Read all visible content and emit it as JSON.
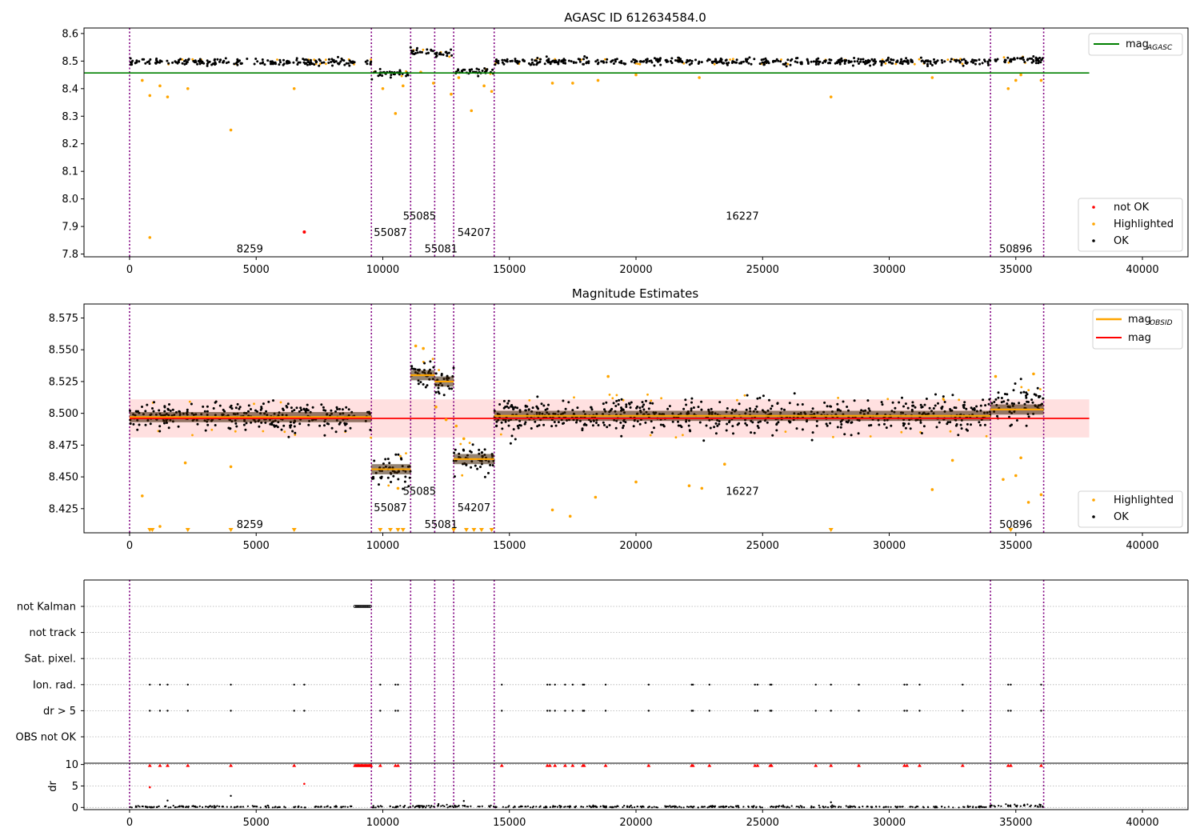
{
  "chart_data": [
    {
      "type": "scatter",
      "id": "agasc",
      "title": "AGASC ID 612634584.0",
      "xlabel": "",
      "ylabel": "",
      "xlim": [
        -1800,
        41800
      ],
      "ylim": [
        7.79,
        8.62
      ],
      "xticks": [
        0,
        5000,
        10000,
        15000,
        20000,
        25000,
        30000,
        35000,
        40000
      ],
      "xtick_labels": [
        "0",
        "5000",
        "10000",
        "15000",
        "20000",
        "25000",
        "30000",
        "35000",
        "40000"
      ],
      "yticks": [
        7.8,
        7.9,
        8.0,
        8.1,
        8.2,
        8.3,
        8.4,
        8.5,
        8.6
      ],
      "ytick_labels": [
        "7.8",
        "7.9",
        "8.0",
        "8.1",
        "8.2",
        "8.3",
        "8.4",
        "8.5",
        "8.6"
      ],
      "reference_line": {
        "name": "mag_AGASC",
        "value": 8.457,
        "x_range": [
          -1800,
          37900
        ],
        "color": "#008000"
      },
      "segments": [
        {
          "x_range": [
            0,
            8900
          ],
          "y": 8.497,
          "spread": 0.012
        },
        {
          "x_range": [
            9300,
            9550
          ],
          "y": 8.497,
          "spread": 0.012
        },
        {
          "x_range": [
            9550,
            11100
          ],
          "y": 8.455,
          "spread": 0.012
        },
        {
          "x_range": [
            11100,
            12050
          ],
          "y": 8.533,
          "spread": 0.012
        },
        {
          "x_range": [
            12050,
            12800
          ],
          "y": 8.525,
          "spread": 0.012
        },
        {
          "x_range": [
            12800,
            14400
          ],
          "y": 8.463,
          "spread": 0.012
        },
        {
          "x_range": [
            14400,
            34000
          ],
          "y": 8.498,
          "spread": 0.012
        },
        {
          "x_range": [
            34000,
            36100
          ],
          "y": 8.505,
          "spread": 0.014
        }
      ],
      "highlighted_points": [
        [
          800,
          8.375
        ],
        [
          1200,
          8.41
        ],
        [
          1500,
          8.37
        ],
        [
          500,
          8.43
        ],
        [
          2300,
          8.4
        ],
        [
          4000,
          8.25
        ],
        [
          6500,
          8.4
        ],
        [
          800,
          7.86
        ],
        [
          10000,
          8.4
        ],
        [
          10500,
          8.31
        ],
        [
          10800,
          8.41
        ],
        [
          11500,
          8.46
        ],
        [
          12000,
          8.42
        ],
        [
          12700,
          8.38
        ],
        [
          13000,
          8.44
        ],
        [
          13500,
          8.32
        ],
        [
          14000,
          8.41
        ],
        [
          14300,
          8.39
        ],
        [
          16700,
          8.42
        ],
        [
          17500,
          8.42
        ],
        [
          18500,
          8.43
        ],
        [
          20000,
          8.45
        ],
        [
          22500,
          8.44
        ],
        [
          27700,
          8.37
        ],
        [
          31700,
          8.44
        ],
        [
          34700,
          8.4
        ],
        [
          35000,
          8.43
        ],
        [
          35200,
          8.45
        ],
        [
          36000,
          8.43
        ]
      ],
      "not_ok_points": [
        [
          6900,
          7.88
        ]
      ],
      "obsid_boundaries": [
        0,
        9550,
        11100,
        12050,
        12800,
        14400,
        34000,
        36100
      ],
      "obsid_labels": [
        {
          "text": "8259",
          "x": 4750,
          "y": 7.82
        },
        {
          "text": "55087",
          "x": 10300,
          "y": 7.88
        },
        {
          "text": "55085",
          "x": 11450,
          "y": 7.94
        },
        {
          "text": "55081",
          "x": 12300,
          "y": 7.82
        },
        {
          "text": "54207",
          "x": 13600,
          "y": 7.88
        },
        {
          "text": "16227",
          "x": 24200,
          "y": 7.94
        },
        {
          "text": "50896",
          "x": 35000,
          "y": 7.82
        }
      ],
      "legend_upper": {
        "position": "top-right",
        "entries": [
          {
            "label": "mag",
            "sub": "AGASC",
            "color": "#008000",
            "kind": "line"
          }
        ]
      },
      "legend_lower": {
        "position": "bottom-right",
        "entries": [
          {
            "label": "not OK",
            "color": "#ff0000",
            "kind": "dot"
          },
          {
            "label": "Highlighted",
            "color": "#ffa500",
            "kind": "dot"
          },
          {
            "label": "OK",
            "color": "#000000",
            "kind": "dot"
          }
        ]
      }
    },
    {
      "type": "scatter",
      "id": "estimates",
      "title": "Magnitude Estimates",
      "xlabel": "",
      "ylabel": "",
      "xlim": [
        -1800,
        41800
      ],
      "ylim": [
        8.406,
        8.586
      ],
      "xticks": [
        0,
        5000,
        10000,
        15000,
        20000,
        25000,
        30000,
        35000,
        40000
      ],
      "xtick_labels": [
        "0",
        "5000",
        "10000",
        "15000",
        "20000",
        "25000",
        "30000",
        "35000",
        "40000"
      ],
      "yticks": [
        8.425,
        8.45,
        8.475,
        8.5,
        8.525,
        8.55,
        8.575
      ],
      "ytick_labels": [
        "8.425",
        "8.450",
        "8.475",
        "8.500",
        "8.525",
        "8.550",
        "8.575"
      ],
      "mean_mag": 8.496,
      "mean_band": [
        8.481,
        8.511
      ],
      "mean_range": [
        0,
        37900
      ],
      "obsid_mags": [
        {
          "x_range": [
            0,
            9550
          ],
          "mag": 8.497
        },
        {
          "x_range": [
            9550,
            11100
          ],
          "mag": 8.456
        },
        {
          "x_range": [
            11100,
            12050
          ],
          "mag": 8.53
        },
        {
          "x_range": [
            12050,
            12800
          ],
          "mag": 8.525
        },
        {
          "x_range": [
            12800,
            14400
          ],
          "mag": 8.464
        },
        {
          "x_range": [
            14400,
            34000
          ],
          "mag": 8.498
        },
        {
          "x_range": [
            34000,
            36100
          ],
          "mag": 8.503
        }
      ],
      "segments": [
        {
          "x_range": [
            0,
            8900
          ],
          "y": 8.497,
          "spread": 0.011
        },
        {
          "x_range": [
            9300,
            9550
          ],
          "y": 8.495,
          "spread": 0.011
        },
        {
          "x_range": [
            9550,
            11100
          ],
          "y": 8.455,
          "spread": 0.011
        },
        {
          "x_range": [
            11100,
            12050
          ],
          "y": 8.53,
          "spread": 0.01
        },
        {
          "x_range": [
            12050,
            12800
          ],
          "y": 8.525,
          "spread": 0.01
        },
        {
          "x_range": [
            12800,
            14400
          ],
          "y": 8.463,
          "spread": 0.011
        },
        {
          "x_range": [
            14400,
            34000
          ],
          "y": 8.498,
          "spread": 0.013
        },
        {
          "x_range": [
            34000,
            36100
          ],
          "y": 8.505,
          "spread": 0.014
        }
      ],
      "highlighted_points": [
        [
          500,
          8.435
        ],
        [
          2200,
          8.461
        ],
        [
          4000,
          8.458
        ],
        [
          11300,
          8.553
        ],
        [
          11600,
          8.551
        ],
        [
          12100,
          8.505
        ],
        [
          12500,
          8.495
        ],
        [
          12900,
          8.49
        ],
        [
          10600,
          8.441
        ],
        [
          16700,
          8.424
        ],
        [
          17400,
          8.419
        ],
        [
          18400,
          8.434
        ],
        [
          18900,
          8.529
        ],
        [
          20000,
          8.446
        ],
        [
          22100,
          8.443
        ],
        [
          22600,
          8.441
        ],
        [
          23500,
          8.46
        ],
        [
          31700,
          8.44
        ],
        [
          32500,
          8.463
        ],
        [
          34200,
          8.529
        ],
        [
          34500,
          8.448
        ],
        [
          35000,
          8.451
        ],
        [
          35200,
          8.465
        ],
        [
          35500,
          8.43
        ],
        [
          36000,
          8.436
        ],
        [
          35700,
          8.531
        ],
        [
          1200,
          8.411
        ],
        [
          13200,
          8.48
        ]
      ],
      "clipped_points": [
        800,
        900,
        2300,
        4000,
        6500,
        9900,
        10300,
        10600,
        10800,
        12800,
        13300,
        13600,
        13900,
        14300,
        27700,
        34800
      ],
      "obsid_boundaries": [
        0,
        9550,
        11100,
        12050,
        12800,
        14400,
        34000,
        36100
      ],
      "obsid_labels": [
        {
          "text": "8259",
          "x": 4750,
          "y": 8.413
        },
        {
          "text": "55087",
          "x": 10300,
          "y": 8.426
        },
        {
          "text": "55085",
          "x": 11450,
          "y": 8.439
        },
        {
          "text": "55081",
          "x": 12300,
          "y": 8.413
        },
        {
          "text": "54207",
          "x": 13600,
          "y": 8.426
        },
        {
          "text": "16227",
          "x": 24200,
          "y": 8.439
        },
        {
          "text": "50896",
          "x": 35000,
          "y": 8.413
        }
      ],
      "legend_upper": {
        "position": "top-right",
        "entries": [
          {
            "label": "mag",
            "sub": "OBSID",
            "color": "#ffa500",
            "kind": "line"
          },
          {
            "label": "mag",
            "sub": "",
            "color": "#ff0000",
            "kind": "line"
          }
        ]
      },
      "legend_lower": {
        "position": "bottom-right",
        "entries": [
          {
            "label": "Highlighted",
            "color": "#ffa500",
            "kind": "dot"
          },
          {
            "label": "OK",
            "color": "#000000",
            "kind": "dot"
          }
        ]
      }
    },
    {
      "type": "scatter",
      "id": "flags",
      "title": "",
      "xlim": [
        -1800,
        41800
      ],
      "categories": [
        "not Kalman",
        "not track",
        "Sat. pixel.",
        "Ion. rad.",
        "dr > 5",
        "OBS not OK"
      ],
      "not_kalman_range": [
        8900,
        9550
      ],
      "flag_x": [
        800,
        1200,
        1500,
        2300,
        4000,
        6500,
        6900,
        9900,
        10500,
        10600,
        14700,
        16500,
        16600,
        16800,
        17200,
        17500,
        17900,
        17950,
        18800,
        20500,
        22200,
        22250,
        22900,
        24700,
        24800,
        25300,
        25350,
        27100,
        27700,
        28800,
        30600,
        30700,
        31200,
        32900,
        34700,
        34800,
        36000
      ],
      "obsid_boundaries": [
        0,
        9550,
        11100,
        12050,
        12800,
        14400,
        34000,
        36100
      ]
    },
    {
      "type": "scatter",
      "id": "dr",
      "title": "",
      "xlim": [
        -1800,
        41800
      ],
      "xlabel": "",
      "ylabel": "dr",
      "ylim": [
        -0.5,
        10.3
      ],
      "xticks": [
        0,
        5000,
        10000,
        15000,
        20000,
        25000,
        30000,
        35000,
        40000
      ],
      "xtick_labels": [
        "0",
        "5000",
        "10000",
        "15000",
        "20000",
        "25000",
        "30000",
        "35000",
        "40000"
      ],
      "yticks": [
        0,
        5,
        10
      ],
      "ytick_labels": [
        "0",
        "5",
        "10"
      ],
      "capped_x": [
        800,
        1200,
        1500,
        2300,
        4000,
        6500,
        9900,
        10500,
        10600,
        14700,
        16500,
        16600,
        16800,
        17200,
        17500,
        17900,
        17950,
        18800,
        20500,
        22200,
        22250,
        22900,
        24700,
        24800,
        25300,
        25350,
        27100,
        27700,
        28800,
        30600,
        30700,
        31200,
        32900,
        34700,
        34800,
        36000
      ],
      "capped_value": 10,
      "red_points": [
        [
          800,
          4.7
        ],
        [
          6900,
          5.5
        ]
      ],
      "outliers": [
        [
          4000,
          2.7
        ],
        [
          1500,
          1.6
        ],
        [
          13200,
          1.5
        ],
        [
          27700,
          1.2
        ],
        [
          12200,
          0.8
        ]
      ],
      "segments": [
        {
          "x_range": [
            0,
            8900
          ],
          "y": 0.15,
          "spread": 0.25
        },
        {
          "x_range": [
            9550,
            14400
          ],
          "y": 0.25,
          "spread": 0.3
        },
        {
          "x_range": [
            14400,
            34000
          ],
          "y": 0.15,
          "spread": 0.25
        },
        {
          "x_range": [
            34000,
            36100
          ],
          "y": 0.45,
          "spread": 0.4
        }
      ],
      "obsid_boundaries": [
        0,
        9550,
        11100,
        12050,
        12800,
        14400,
        34000,
        36100
      ]
    }
  ]
}
